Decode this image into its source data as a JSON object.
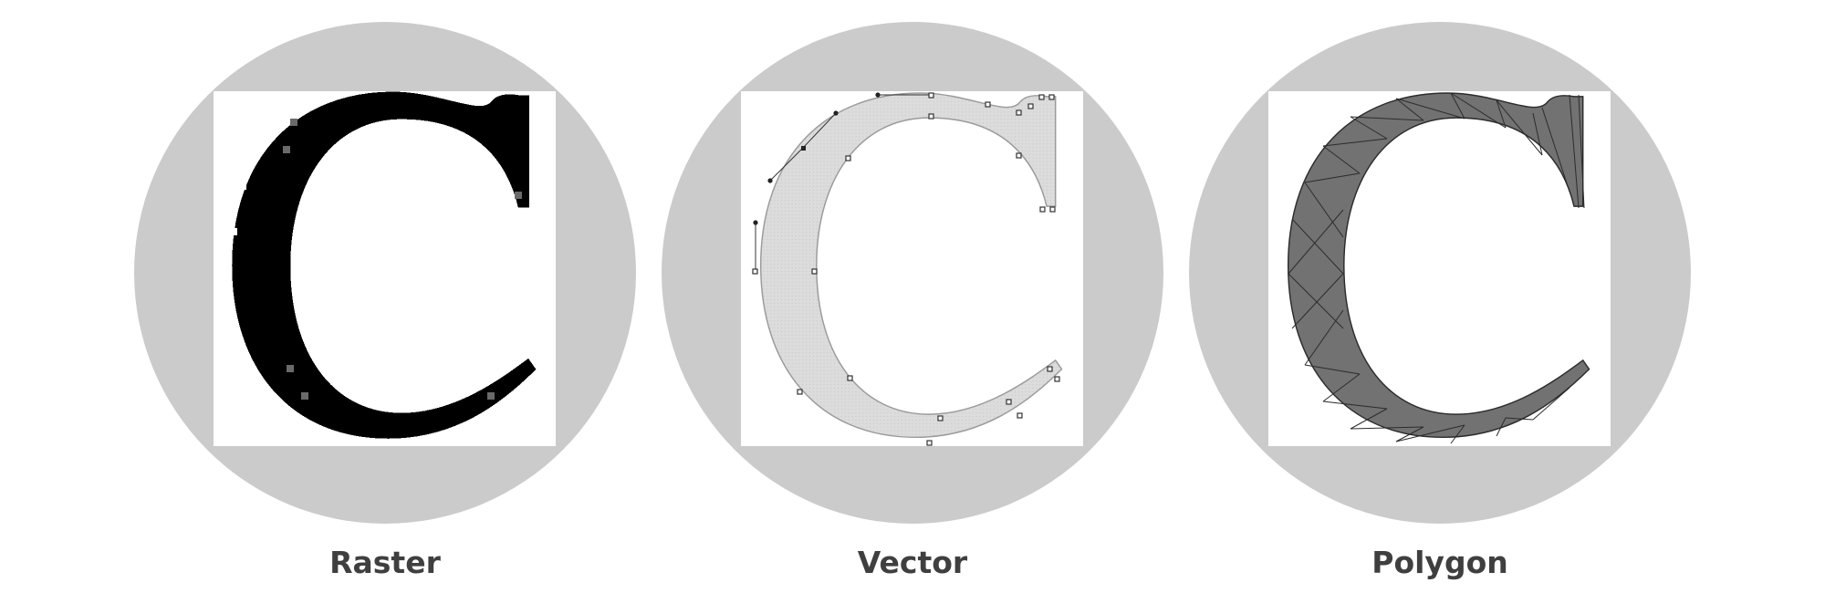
{
  "panels": [
    {
      "id": "raster",
      "label": "Raster"
    },
    {
      "id": "vector",
      "label": "Vector"
    },
    {
      "id": "polygon",
      "label": "Polygon"
    }
  ],
  "colors": {
    "circle": "#cbcbcb",
    "caption": "#3f3f3f",
    "raster_fill": "#000000",
    "vector_fill": "#dadada",
    "polygon_fill": "#727272"
  }
}
